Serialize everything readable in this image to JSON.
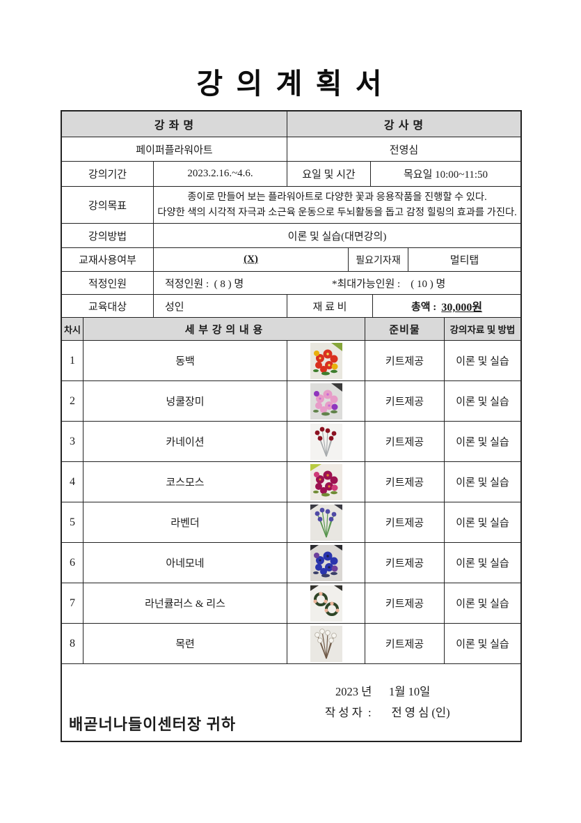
{
  "title": "강 의 계 획 서",
  "info": {
    "course_header": "강 좌 명",
    "instructor_header": "강 사 명",
    "course_name": "페이퍼플라워아트",
    "instructor_name": "전영심",
    "period_label": "강의기간",
    "period_value": "2023.2.16.~4.6.",
    "daytime_label": "요일 및 시간",
    "daytime_value": "목요일 10:00~11:50",
    "goal_label": "강의목표",
    "goal_line1": "종이로 만들어 보는 플라워아트로 다양한 꽃과 응용작품을 진행할 수 있다.",
    "goal_line2": "다양한 색의 시각적 자극과 소근육 운동으로 두뇌활동을 돕고 감정 힐링의 효과를 가진다.",
    "method_label": "강의방법",
    "method_value": "이론 및 실습(대면강의)",
    "textbook_label": "교재사용여부",
    "textbook_value": "(X)",
    "equipment_label": "필요기자재",
    "equipment_value": "멀티탭",
    "capacity_label": "적정인원",
    "capacity_value": "적정인원 :  ( 8 ) 명",
    "capacity_max_value": "*최대가능인원 :    ( 10 ) 명",
    "target_label": "교육대상",
    "target_value": "성인",
    "fee_label": "재 료 비",
    "fee_total_label": "총액 :",
    "fee_total_value": "30,000원"
  },
  "session_table": {
    "headers": {
      "no": "차시",
      "content": "세 부 강 의 내 용",
      "materials": "준비물",
      "method": "강의자료 및 방법"
    },
    "rows": [
      {
        "no": "1",
        "name": "동백",
        "materials": "키트제공",
        "method": "이론 및 실습",
        "photo": {
          "name": "camellia-photo",
          "variant": "cluster",
          "bg": "#e9e7df",
          "c1": "#d9301f",
          "c2": "#e8b00e",
          "c3": "#f2e25a",
          "leaf": "#3e7d2c",
          "corner": "tr",
          "corner_color": "#86a63a"
        }
      },
      {
        "no": "2",
        "name": "넝쿨장미",
        "materials": "키트제공",
        "method": "이론 및 실습",
        "photo": {
          "name": "vine-rose-photo",
          "variant": "cluster",
          "bg": "#dddddb",
          "c1": "#e79cc8",
          "c2": "#8f35bd",
          "c3": "#c86ad4",
          "leaf": "#60824a",
          "corner": "tr",
          "corner_color": "#3a3a3a"
        }
      },
      {
        "no": "3",
        "name": "카네이션",
        "materials": "키트제공",
        "method": "이론 및 실습",
        "photo": {
          "name": "carnation-photo",
          "variant": "stems",
          "bg": "#f4f3f1",
          "c1": "#8c1222",
          "c2": "#6d0e1b",
          "stem": "#a7abad",
          "corner": "none",
          "corner_color": ""
        }
      },
      {
        "no": "4",
        "name": "코스모스",
        "materials": "키트제공",
        "method": "이론 및 실습",
        "photo": {
          "name": "cosmos-photo",
          "variant": "cluster",
          "bg": "#efeae4",
          "c1": "#9c1150",
          "c2": "#cf3a78",
          "c3": "#e1872e",
          "leaf": "#708b34",
          "corner": "tl",
          "corner_color": "#b8cb42"
        }
      },
      {
        "no": "5",
        "name": "라벤더",
        "materials": "키트제공",
        "method": "이론 및 실습",
        "photo": {
          "name": "lavender-photo",
          "variant": "stems",
          "bg": "#e8e6e1",
          "c1": "#4f4aa5",
          "c2": "#2e57b0",
          "stem": "#57954d",
          "corner": "both",
          "corner_color": "#3c3c44"
        }
      },
      {
        "no": "6",
        "name": "아네모네",
        "materials": "키트제공",
        "method": "이론 및 실습",
        "photo": {
          "name": "anemone-photo",
          "variant": "cluster",
          "bg": "#dbd8d4",
          "c1": "#2a35ad",
          "c2": "#6c3f9b",
          "c3": "#1b1e46",
          "leaf": "#3a3f68",
          "corner": "both",
          "corner_color": "#2c2c30"
        }
      },
      {
        "no": "7",
        "name": "라넌큘러스 & 리스",
        "materials": "키트제공",
        "method": "이론 및 실습",
        "photo": {
          "name": "ranunculus-wreath-photo",
          "variant": "wreath",
          "bg": "#f1f0ec",
          "c1": "#ecb49a",
          "c2": "#2e4527",
          "corner": "both",
          "corner_color": "#34342f"
        }
      },
      {
        "no": "8",
        "name": "목련",
        "materials": "키트제공",
        "method": "이론 및 실습",
        "photo": {
          "name": "magnolia-photo",
          "variant": "branches",
          "bg": "#eae8e3",
          "c1": "#f7f5f0",
          "c2": "#b9b3a8",
          "stem": "#6e5845",
          "corner": "none",
          "corner_color": ""
        }
      }
    ]
  },
  "footer": {
    "date": "2023 년      1월 10일",
    "author": "작 성 자  :       전 영 심 (인)",
    "recipient": "배곧너나들이센터장 귀하"
  },
  "colors": {
    "header_bg": "#d9d9d9",
    "border": "#222222"
  }
}
